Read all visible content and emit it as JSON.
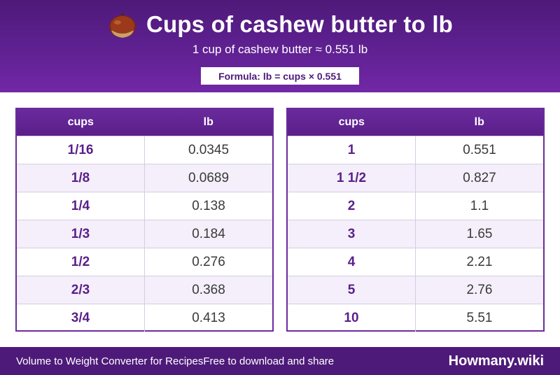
{
  "header": {
    "icon": "chestnut-icon",
    "title": "Cups of cashew butter to lb",
    "subtitle": "1 cup of cashew butter ≈ 0.551 lb",
    "formula": "Formula: lb = cups × 0.551"
  },
  "tables": {
    "left": {
      "headers": [
        "cups",
        "lb"
      ],
      "rows": [
        {
          "cups": "1/16",
          "lb": "0.0345"
        },
        {
          "cups": "1/8",
          "lb": "0.0689"
        },
        {
          "cups": "1/4",
          "lb": "0.138"
        },
        {
          "cups": "1/3",
          "lb": "0.184"
        },
        {
          "cups": "1/2",
          "lb": "0.276"
        },
        {
          "cups": "2/3",
          "lb": "0.368"
        },
        {
          "cups": "3/4",
          "lb": "0.413"
        }
      ]
    },
    "right": {
      "headers": [
        "cups",
        "lb"
      ],
      "rows": [
        {
          "cups": "1",
          "lb": "0.551"
        },
        {
          "cups": "1 1/2",
          "lb": "0.827"
        },
        {
          "cups": "2",
          "lb": "1.1"
        },
        {
          "cups": "3",
          "lb": "1.65"
        },
        {
          "cups": "4",
          "lb": "2.21"
        },
        {
          "cups": "5",
          "lb": "2.76"
        },
        {
          "cups": "10",
          "lb": "5.51"
        }
      ]
    }
  },
  "footer": {
    "left": "Volume to Weight Converter for Recipes",
    "middle": "Free to download and share",
    "brand": "Howmany.wiki"
  },
  "colors": {
    "primary": "#5e2090",
    "dark": "#4e1a79",
    "row_alt": "#f4effa"
  }
}
